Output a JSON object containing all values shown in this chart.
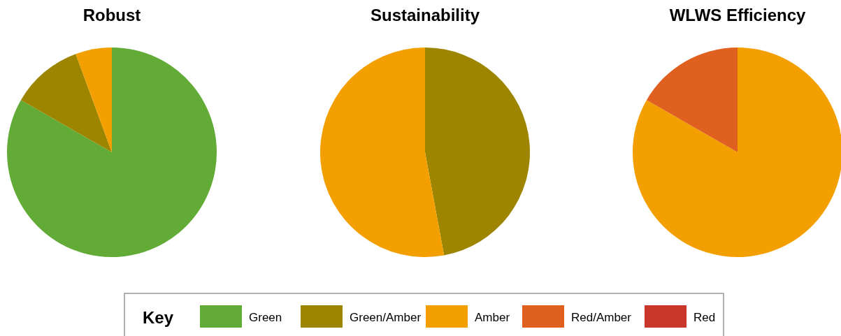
{
  "chart_data": [
    {
      "type": "pie",
      "title": "Robust",
      "categories": [
        "Green",
        "Green/Amber",
        "Amber",
        "Red/Amber",
        "Red"
      ],
      "values": [
        83.3,
        11.1,
        5.6,
        0,
        0
      ],
      "colors": [
        "#62ab37",
        "#9e8500",
        "#f39f00",
        "#df601f",
        "#c9372a"
      ],
      "legend": "bottom",
      "legend_title": "Key"
    },
    {
      "type": "pie",
      "title": "Sustainability",
      "categories": [
        null,
        null
      ],
      "values": [
        47.1,
        52.9
      ],
      "colors": [
        "#9e8500",
        "#f39f00"
      ]
    },
    {
      "type": "pie",
      "title": "WLWS Efficiency",
      "categories": [
        null,
        null
      ],
      "values": [
        83.3,
        16.7
      ],
      "colors": [
        "#f39f00",
        "#df601f"
      ]
    }
  ]
}
